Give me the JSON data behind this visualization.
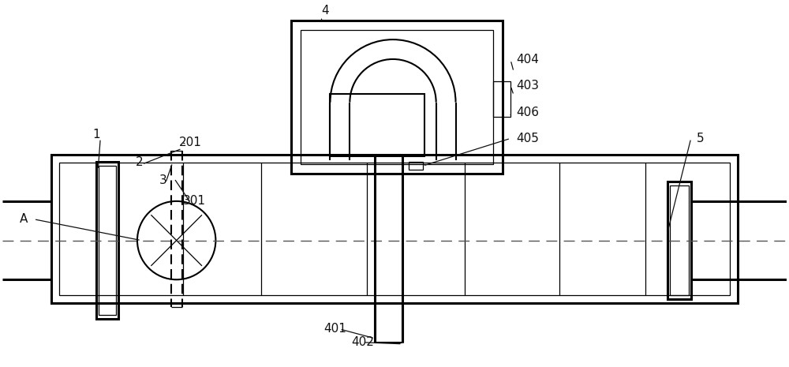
{
  "bg_color": "#ffffff",
  "line_color": "#000000",
  "lw": 1.5,
  "lw2": 2.2,
  "lw_thin": 0.9,
  "fig_w": 10.0,
  "fig_h": 4.65,
  "dpi": 100
}
